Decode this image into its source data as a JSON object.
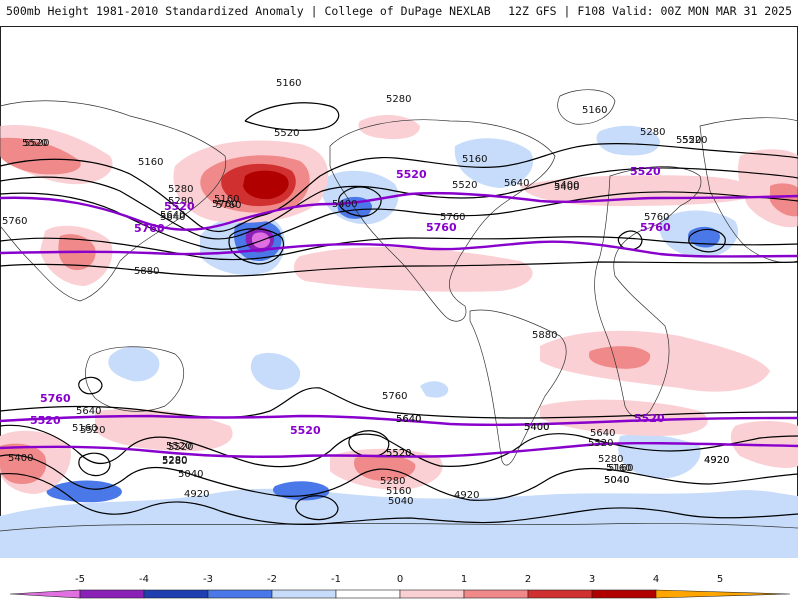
{
  "header": {
    "left_title": "500mb Height 1981-2010 Standardized Anomaly | College of DuPage NEXLAB",
    "right_title": "12Z GFS | F108 Valid: 00Z MON MAR 31 2025"
  },
  "colors": {
    "neg5": "#e070e0",
    "neg4": "#8a20b8",
    "neg3": "#1f3fb0",
    "neg2": "#4a78e8",
    "neg1": "#c6dcfa",
    "pos1": "#fbd0d4",
    "pos2": "#f08a8a",
    "pos3": "#d03030",
    "pos4": "#b00000",
    "pos5": "#ffa500",
    "contour": "#000000",
    "highlight": "#8800cc",
    "coast": "#333333"
  },
  "colorbar": {
    "ticks": [
      "-5",
      "-4",
      "-3",
      "-2",
      "-1",
      "0",
      "1",
      "2",
      "3",
      "4",
      "5"
    ]
  },
  "labels": {
    "black": [
      "5160",
      "5280",
      "5160",
      "5280",
      "5520",
      "5160",
      "5520",
      "5280",
      "5640",
      "5760",
      "5520",
      "5400",
      "5520",
      "5400",
      "5160",
      "5640",
      "5760",
      "5760",
      "5880",
      "5880",
      "5280",
      "5160",
      "5520",
      "5400",
      "5640",
      "5760",
      "5520",
      "5760",
      "5640",
      "5520",
      "5400",
      "5400",
      "5640",
      "5520",
      "5280",
      "5160",
      "5040",
      "4920",
      "5520",
      "5280",
      "5040",
      "4920",
      "5640",
      "5520",
      "5400",
      "5280",
      "5160",
      "5040",
      "4920",
      "5160",
      "5520",
      "5280",
      "5160",
      "5040",
      "4920",
      "5760",
      "5640",
      "5520"
    ],
    "purple": [
      "5520",
      "5520",
      "5520",
      "5760",
      "5760",
      "5760",
      "5760",
      "5520",
      "5520",
      "5520"
    ]
  }
}
